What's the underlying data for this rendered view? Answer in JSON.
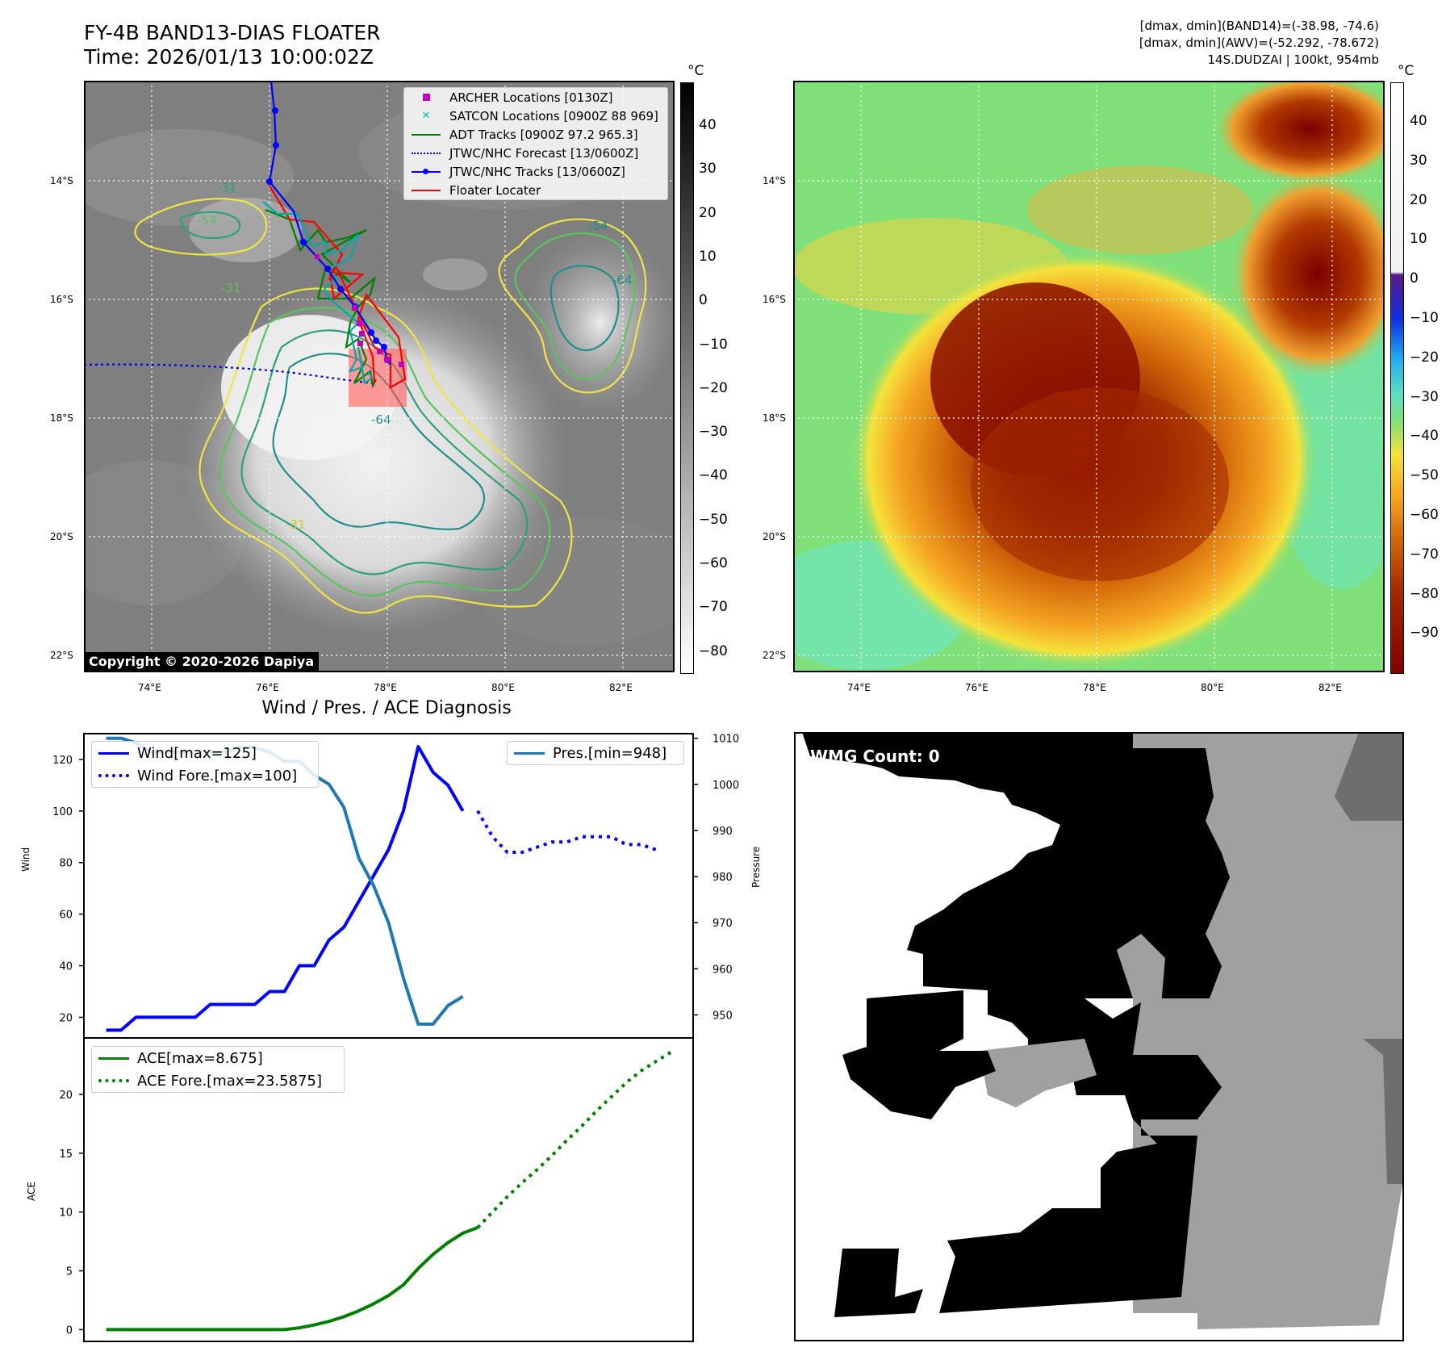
{
  "header": {
    "title_line1": "FY-4B BAND13-DIAS FLOATER",
    "title_line2": "Time: 2026/01/13 10:00:02Z",
    "info_line1": "[dmax, dmin](BAND14)=(-38.98, -74.6)",
    "info_line2": "[dmax, dmin](AWV)=(-52.292, -78.672)",
    "info_line3": "14S.DUDZAI | 100kt, 954mb"
  },
  "map": {
    "lon_ticks": [
      "74°E",
      "76°E",
      "78°E",
      "80°E",
      "82°E"
    ],
    "lat_ticks": [
      "14°S",
      "16°S",
      "18°S",
      "20°S",
      "22°S"
    ],
    "colorbar_unit": "°C",
    "gray_colorbar_ticks": [
      "40",
      "30",
      "20",
      "10",
      "0",
      "−10",
      "−20",
      "−30",
      "−40",
      "−50",
      "−60",
      "−70",
      "−80"
    ],
    "color_colorbar_ticks": [
      "40",
      "30",
      "20",
      "10",
      "0",
      "−10",
      "−20",
      "−30",
      "−40",
      "−50",
      "−60",
      "−70",
      "−80",
      "−90"
    ],
    "contour_labels": [
      "-31",
      "-54",
      "-64",
      "-31",
      "-54",
      "-64",
      "-31"
    ],
    "copyright": "Copyright © 2020-2026 Dapiya",
    "legend": [
      {
        "label": "ARCHER Locations [0130Z]",
        "color": "#bf00bf",
        "style": "square"
      },
      {
        "label": "SATCON Locations [0900Z 88 969]",
        "color": "#00bfbf",
        "style": "x"
      },
      {
        "label": "ADT Tracks [0900Z 97.2 965.3]",
        "color": "#008000",
        "style": "line"
      },
      {
        "label": "JTWC/NHC Forecast [13/0600Z]",
        "color": "#0000ff",
        "style": "dotted"
      },
      {
        "label": "JTWC/NHC Tracks [13/0600Z]",
        "color": "#0000ff",
        "style": "line-dot"
      },
      {
        "label": "Floater Locater",
        "color": "#ff0000",
        "style": "line"
      }
    ]
  },
  "wmg": {
    "label": "WMG Count: 0"
  },
  "chart_data": [
    {
      "type": "line",
      "title": "Wind / Pres. / ACE Diagnosis",
      "ylabel": "Wind",
      "ylabel_right": "Pressure",
      "ylim": [
        12,
        130
      ],
      "ylim_right": [
        945,
        1011
      ],
      "yticks": [
        20,
        40,
        60,
        80,
        100,
        120
      ],
      "yticks_right": [
        950,
        960,
        970,
        980,
        990,
        1000,
        1010
      ],
      "x": [
        0,
        1,
        2,
        3,
        4,
        5,
        6,
        7,
        8,
        9,
        10,
        11,
        12,
        13,
        14,
        15,
        16,
        17,
        18,
        19,
        20,
        21,
        22,
        23,
        24,
        25
      ],
      "series": [
        {
          "name": "Wind[max=125]",
          "axis": "left",
          "color": "#0000ff",
          "dash": "solid",
          "x": [
            0,
            1,
            2,
            3,
            4,
            5,
            6,
            7,
            8,
            9,
            10,
            11,
            12,
            13,
            14,
            15,
            16,
            17,
            18,
            19,
            20,
            21,
            22,
            23,
            24,
            25
          ],
          "values": [
            15,
            15,
            20,
            20,
            20,
            20,
            20,
            25,
            25,
            25,
            25,
            30,
            30,
            40,
            40,
            50,
            55,
            65,
            75,
            85,
            100,
            125,
            115,
            110,
            100,
            null
          ]
        },
        {
          "name": "Wind Fore.[max=100]",
          "axis": "left",
          "color": "#0000ff",
          "dash": "dotted",
          "x": [
            25,
            26,
            27,
            28,
            29,
            30,
            31,
            32,
            33,
            34,
            35,
            36,
            37,
            38
          ],
          "values": [
            100,
            90,
            84,
            84,
            86,
            88,
            88,
            90,
            90,
            90,
            87,
            87,
            85,
            null
          ]
        },
        {
          "name": "Pres.[min=948]",
          "axis": "right",
          "color": "#1f77b4",
          "dash": "solid",
          "x": [
            0,
            1,
            2,
            3,
            4,
            5,
            6,
            7,
            8,
            9,
            10,
            11,
            12,
            13,
            14,
            15,
            16,
            17,
            18,
            19,
            20,
            21,
            22,
            23,
            24
          ],
          "values": [
            1010,
            1010,
            1009,
            1007,
            1007,
            1007,
            1007,
            1007,
            1007,
            1008,
            1008,
            1007,
            1005,
            1005,
            1002,
            1000,
            995,
            984,
            978,
            970,
            958,
            948,
            948,
            952,
            954
          ]
        }
      ],
      "legend_right_label": "Pres.[min=948]"
    },
    {
      "type": "line",
      "ylabel": "ACE",
      "ylim": [
        -1,
        24.8
      ],
      "yticks": [
        0,
        5,
        10,
        15,
        20
      ],
      "series": [
        {
          "name": "ACE[max=8.675]",
          "color": "#008000",
          "dash": "solid",
          "x": [
            0,
            2,
            4,
            6,
            8,
            10,
            12,
            13,
            14,
            15,
            16,
            17,
            18,
            19,
            20,
            21,
            22,
            23,
            24,
            25
          ],
          "values": [
            0,
            0,
            0,
            0,
            0,
            0,
            0,
            0.15,
            0.4,
            0.7,
            1.1,
            1.6,
            2.2,
            2.9,
            3.8,
            5.2,
            6.4,
            7.4,
            8.2,
            8.675
          ]
        },
        {
          "name": "ACE Fore.[max=23.5875]",
          "color": "#008000",
          "dash": "dotted",
          "x": [
            25,
            26,
            27,
            28,
            29,
            30,
            31,
            32,
            33,
            34,
            35,
            36,
            37,
            38
          ],
          "values": [
            8.675,
            10.0,
            11.3,
            12.5,
            13.6,
            14.8,
            16.1,
            17.3,
            18.6,
            19.8,
            21.0,
            22.0,
            22.8,
            23.5875
          ]
        }
      ]
    }
  ]
}
